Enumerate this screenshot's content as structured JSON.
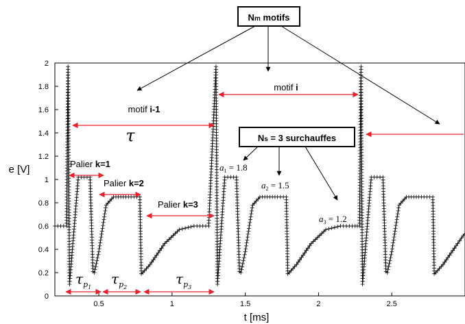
{
  "chart_data": {
    "type": "line",
    "xlabel": "t  [ms]",
    "ylabel": "e  [V]",
    "xlim": [
      0.2,
      3.0
    ],
    "ylim": [
      0,
      2
    ],
    "xticks": [
      0.5,
      1,
      1.5,
      2,
      2.5
    ],
    "xtick_labels": [
      "0.5",
      "1",
      "1.5",
      "2",
      "2.5"
    ],
    "yticks": [
      0,
      0.2,
      0.4,
      0.6,
      0.8,
      1,
      1.2,
      1.4,
      1.6,
      1.8,
      2
    ],
    "ytick_labels": [
      "0",
      "0.2",
      "0.4",
      "0.6",
      "0.8",
      "1",
      "1.2",
      "1.4",
      "1.6",
      "1.8",
      "2"
    ],
    "grid": false,
    "marker": "+",
    "series": [
      {
        "x": [
          0.2,
          0.28,
          0.29,
          0.3,
          0.31,
          0.36,
          0.38,
          0.4,
          0.44,
          0.46,
          0.47,
          0.5,
          0.55,
          0.6,
          0.65,
          0.72,
          0.78,
          0.79,
          0.8,
          0.85,
          0.95,
          1.05,
          1.15,
          1.25,
          1.3,
          1.31,
          1.36,
          1.38,
          1.4,
          1.44,
          1.46,
          1.47,
          1.5,
          1.55,
          1.6,
          1.65,
          1.72,
          1.78,
          1.79,
          1.8,
          1.85,
          1.95,
          2.05,
          2.15,
          2.25,
          2.28,
          2.29,
          2.3,
          2.31,
          2.36,
          2.38,
          2.4,
          2.44,
          2.46,
          2.47,
          2.5,
          2.55,
          2.6,
          2.65,
          2.72,
          2.78,
          2.79,
          2.8,
          2.85,
          2.95,
          3.0
        ],
        "y": [
          0.6,
          0.6,
          1.97,
          0.1,
          0.25,
          1.02,
          1.02,
          1.02,
          1.02,
          0.21,
          0.2,
          0.38,
          0.78,
          0.85,
          0.85,
          0.85,
          0.85,
          0.19,
          0.2,
          0.27,
          0.45,
          0.57,
          0.6,
          0.6,
          1.97,
          0.1,
          1.02,
          1.02,
          1.02,
          1.02,
          0.21,
          0.2,
          0.38,
          0.78,
          0.85,
          0.85,
          0.85,
          0.85,
          0.19,
          0.2,
          0.27,
          0.45,
          0.57,
          0.6,
          0.6,
          0.6,
          1.97,
          0.1,
          0.25,
          1.02,
          1.02,
          1.02,
          1.02,
          0.21,
          0.2,
          0.38,
          0.78,
          0.85,
          0.85,
          0.85,
          0.85,
          0.19,
          0.2,
          0.27,
          0.45,
          0.54
        ]
      }
    ]
  },
  "annotations": {
    "nm_box": {
      "prefix": "N",
      "sub": "m",
      "suffix": " motifs"
    },
    "ns_box": {
      "prefix": "N",
      "sub": "s",
      "suffix": " = 3 surchauffes"
    },
    "motif_prev": {
      "label": "motif ",
      "bold": "i-1"
    },
    "motif_cur": {
      "label": "motif ",
      "bold": "i"
    },
    "tau": "τ",
    "palier_1": {
      "label": "Palier ",
      "bold": "k=1"
    },
    "palier_2": {
      "label": "Palier ",
      "bold": "k=2"
    },
    "palier_3": {
      "label": "Palier ",
      "bold": "k=3"
    },
    "a1": {
      "sym": "a",
      "sub": "1",
      "val": " = 1.8"
    },
    "a2": {
      "sym": "a",
      "sub": "2",
      "val": " = 1.5"
    },
    "a3": {
      "sym": "a",
      "sub": "3",
      "val": " = 1.2"
    },
    "tp1": {
      "sym": "τ",
      "sub": "p",
      "subsub": "1"
    },
    "tp2": {
      "sym": "τ",
      "sub": "p",
      "subsub": "2"
    },
    "tp3": {
      "sym": "τ",
      "sub": "p",
      "subsub": "3"
    }
  },
  "colors": {
    "arrow_red": "#e8212b",
    "line": "#000000"
  }
}
